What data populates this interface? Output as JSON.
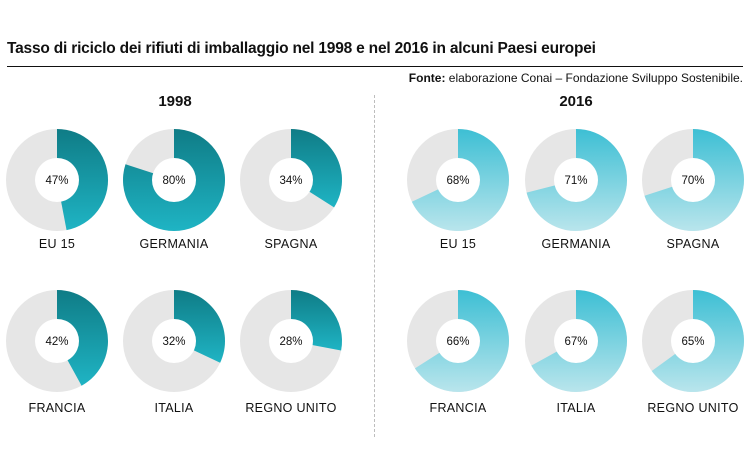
{
  "title": "Tasso di riciclo dei rifiuti di imballaggio nel 1998 e nel 2016 in alcuni Paesi europei",
  "source": {
    "label": "Fonte:",
    "text": "elaborazione Conai – Fondazione Sviluppo Sostenibile."
  },
  "colors": {
    "remainder": "#e6e6e6",
    "y1998_dark": "#0f7c86",
    "y1998_light": "#1fb4c4",
    "y2016_dark": "#3dbfd4",
    "y2016_light": "#b9e5ec",
    "hole": "#ffffff"
  },
  "chart_data": [
    {
      "type": "pie",
      "title": "1998",
      "categories": [
        "EU 15",
        "GERMANIA",
        "SPAGNA",
        "FRANCIA",
        "ITALIA",
        "REGNO UNITO"
      ],
      "values": [
        47,
        80,
        34,
        42,
        32,
        28
      ],
      "value_labels": [
        "47%",
        "80%",
        "34%",
        "42%",
        "32%",
        "28%"
      ],
      "unit": "%"
    },
    {
      "type": "pie",
      "title": "2016",
      "categories": [
        "EU 15",
        "GERMANIA",
        "SPAGNA",
        "FRANCIA",
        "ITALIA",
        "REGNO UNITO"
      ],
      "values": [
        68,
        71,
        70,
        66,
        67,
        65
      ],
      "value_labels": [
        "68%",
        "71%",
        "70%",
        "66%",
        "67%",
        "65%"
      ],
      "unit": "%"
    }
  ]
}
